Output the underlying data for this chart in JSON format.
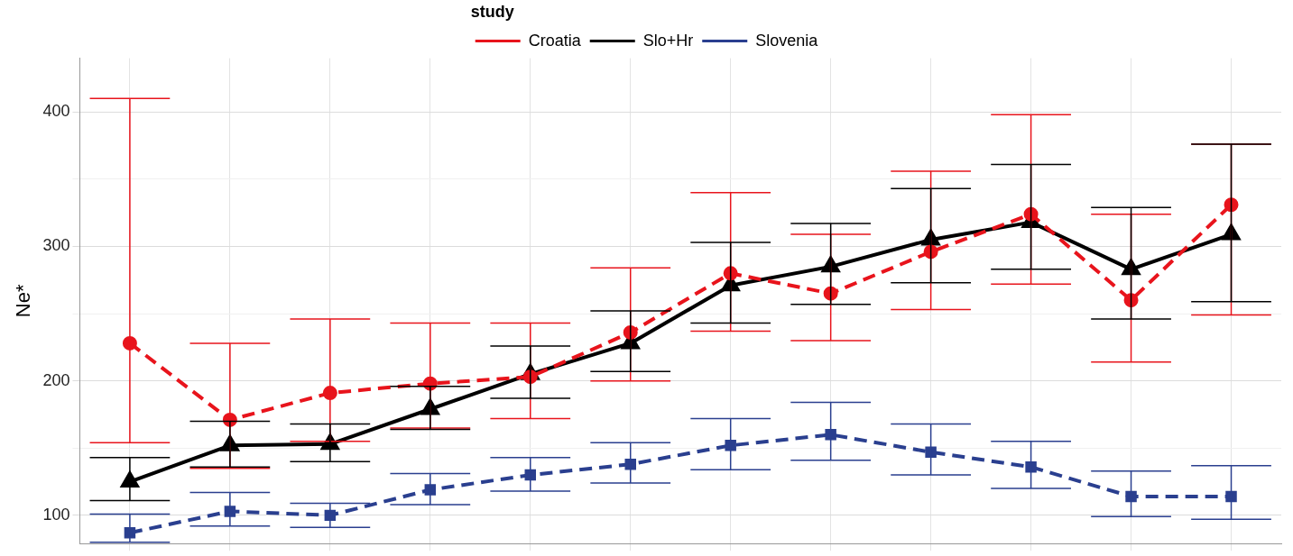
{
  "chart_data": {
    "type": "line",
    "ylabel": "Ne*",
    "legend_title": "study",
    "legend": "top",
    "categories": [
      null,
      null,
      null,
      null,
      null,
      null,
      null,
      null,
      null,
      null,
      null,
      null
    ],
    "series": [
      {
        "name": "Croatia",
        "color": "#e8141c",
        "marker": "circle",
        "line_style": "dashed",
        "values": [
          228,
          171,
          191,
          198,
          203,
          236,
          280,
          265,
          296,
          324,
          260,
          331
        ],
        "errors": [
          [
            154,
            410
          ],
          [
            135,
            228
          ],
          [
            155,
            246
          ],
          [
            165,
            243
          ],
          [
            172,
            243
          ],
          [
            200,
            284
          ],
          [
            237,
            340
          ],
          [
            230,
            309
          ],
          [
            253,
            356
          ],
          [
            272,
            398
          ],
          [
            214,
            324
          ],
          [
            249,
            376
          ]
        ]
      },
      {
        "name": "Slo+Hr",
        "color": "#000000",
        "marker": "triangle",
        "line_style": "solid",
        "values": [
          125,
          152,
          153,
          179,
          205,
          228,
          271,
          285,
          305,
          318,
          283,
          309
        ],
        "errors": [
          [
            111,
            143
          ],
          [
            136,
            170
          ],
          [
            140,
            168
          ],
          [
            164,
            196
          ],
          [
            187,
            226
          ],
          [
            207,
            252
          ],
          [
            243,
            303
          ],
          [
            257,
            317
          ],
          [
            273,
            343
          ],
          [
            283,
            361
          ],
          [
            246,
            329
          ],
          [
            259,
            376
          ]
        ]
      },
      {
        "name": "Slovenia",
        "color": "#2a3f8f",
        "marker": "square",
        "line_style": "dashed",
        "values": [
          87,
          103,
          100,
          119,
          130,
          138,
          152,
          160,
          147,
          136,
          114,
          114
        ],
        "errors": [
          [
            80,
            101
          ],
          [
            92,
            117
          ],
          [
            91,
            109
          ],
          [
            108,
            131
          ],
          [
            118,
            143
          ],
          [
            124,
            154
          ],
          [
            134,
            172
          ],
          [
            141,
            184
          ],
          [
            130,
            168
          ],
          [
            120,
            155
          ],
          [
            99,
            133
          ],
          [
            97,
            137
          ]
        ]
      }
    ],
    "ylim": [
      79,
      440
    ],
    "yticks": [
      100,
      {
        "value": 150,
        "label": null
      },
      200,
      {
        "value": 250,
        "label": null
      },
      300,
      {
        "value": 350,
        "label": null
      },
      400
    ],
    "grid": true,
    "tick_labels": "y"
  }
}
